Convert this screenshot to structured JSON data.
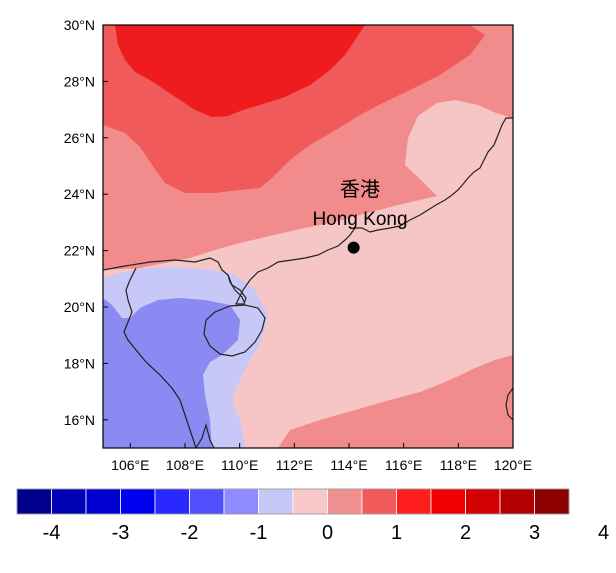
{
  "annotation": {
    "label_zh": "香港",
    "label_en": "Hong Kong",
    "lon": 114.17,
    "lat": 22.32
  },
  "axes": {
    "lon_range": [
      105,
      120
    ],
    "lat_range": [
      15,
      30
    ],
    "x_ticks": [
      {
        "value": 106,
        "label": "106°E"
      },
      {
        "value": 108,
        "label": "108°E"
      },
      {
        "value": 110,
        "label": "110°E"
      },
      {
        "value": 112,
        "label": "112°E"
      },
      {
        "value": 114,
        "label": "114°E"
      },
      {
        "value": 116,
        "label": "116°E"
      },
      {
        "value": 118,
        "label": "118°E"
      },
      {
        "value": 120,
        "label": "120°E"
      }
    ],
    "y_ticks": [
      {
        "value": 16,
        "label": "16°N"
      },
      {
        "value": 18,
        "label": "18°N"
      },
      {
        "value": 20,
        "label": "20°N"
      },
      {
        "value": 22,
        "label": "22°N"
      },
      {
        "value": 24,
        "label": "24°N"
      },
      {
        "value": 26,
        "label": "26°N"
      },
      {
        "value": 28,
        "label": "28°N"
      },
      {
        "value": 30,
        "label": "30°N"
      }
    ]
  },
  "colorbar": {
    "colors": [
      "#00008c",
      "#0000b4",
      "#0000d2",
      "#0000f0",
      "#2828ff",
      "#5050ff",
      "#8c8cff",
      "#c8c8f8",
      "#f8c8c8",
      "#f09090",
      "#f05a5a",
      "#ff1e1e",
      "#f00000",
      "#d20000",
      "#b40000",
      "#8c0000"
    ],
    "labels": [
      {
        "boundary": 1,
        "text": "-4"
      },
      {
        "boundary": 3,
        "text": "-3"
      },
      {
        "boundary": 5,
        "text": "-2"
      },
      {
        "boundary": 7,
        "text": "-1"
      },
      {
        "boundary": 9,
        "text": "0"
      },
      {
        "boundary": 11,
        "text": "1"
      },
      {
        "boundary": 13,
        "text": "2"
      },
      {
        "boundary": 15,
        "text": "3"
      },
      {
        "boundary": 17,
        "text": "4"
      }
    ]
  },
  "fill_colors": {
    "very_light_red": "#f6c6c6",
    "light_red": "#f28c8c",
    "medium_red": "#f05a5a",
    "red": "#ee1c1c",
    "light_blue": "#c8c8f8",
    "medium_blue": "#8a8af2",
    "coastline": "#222222"
  }
}
